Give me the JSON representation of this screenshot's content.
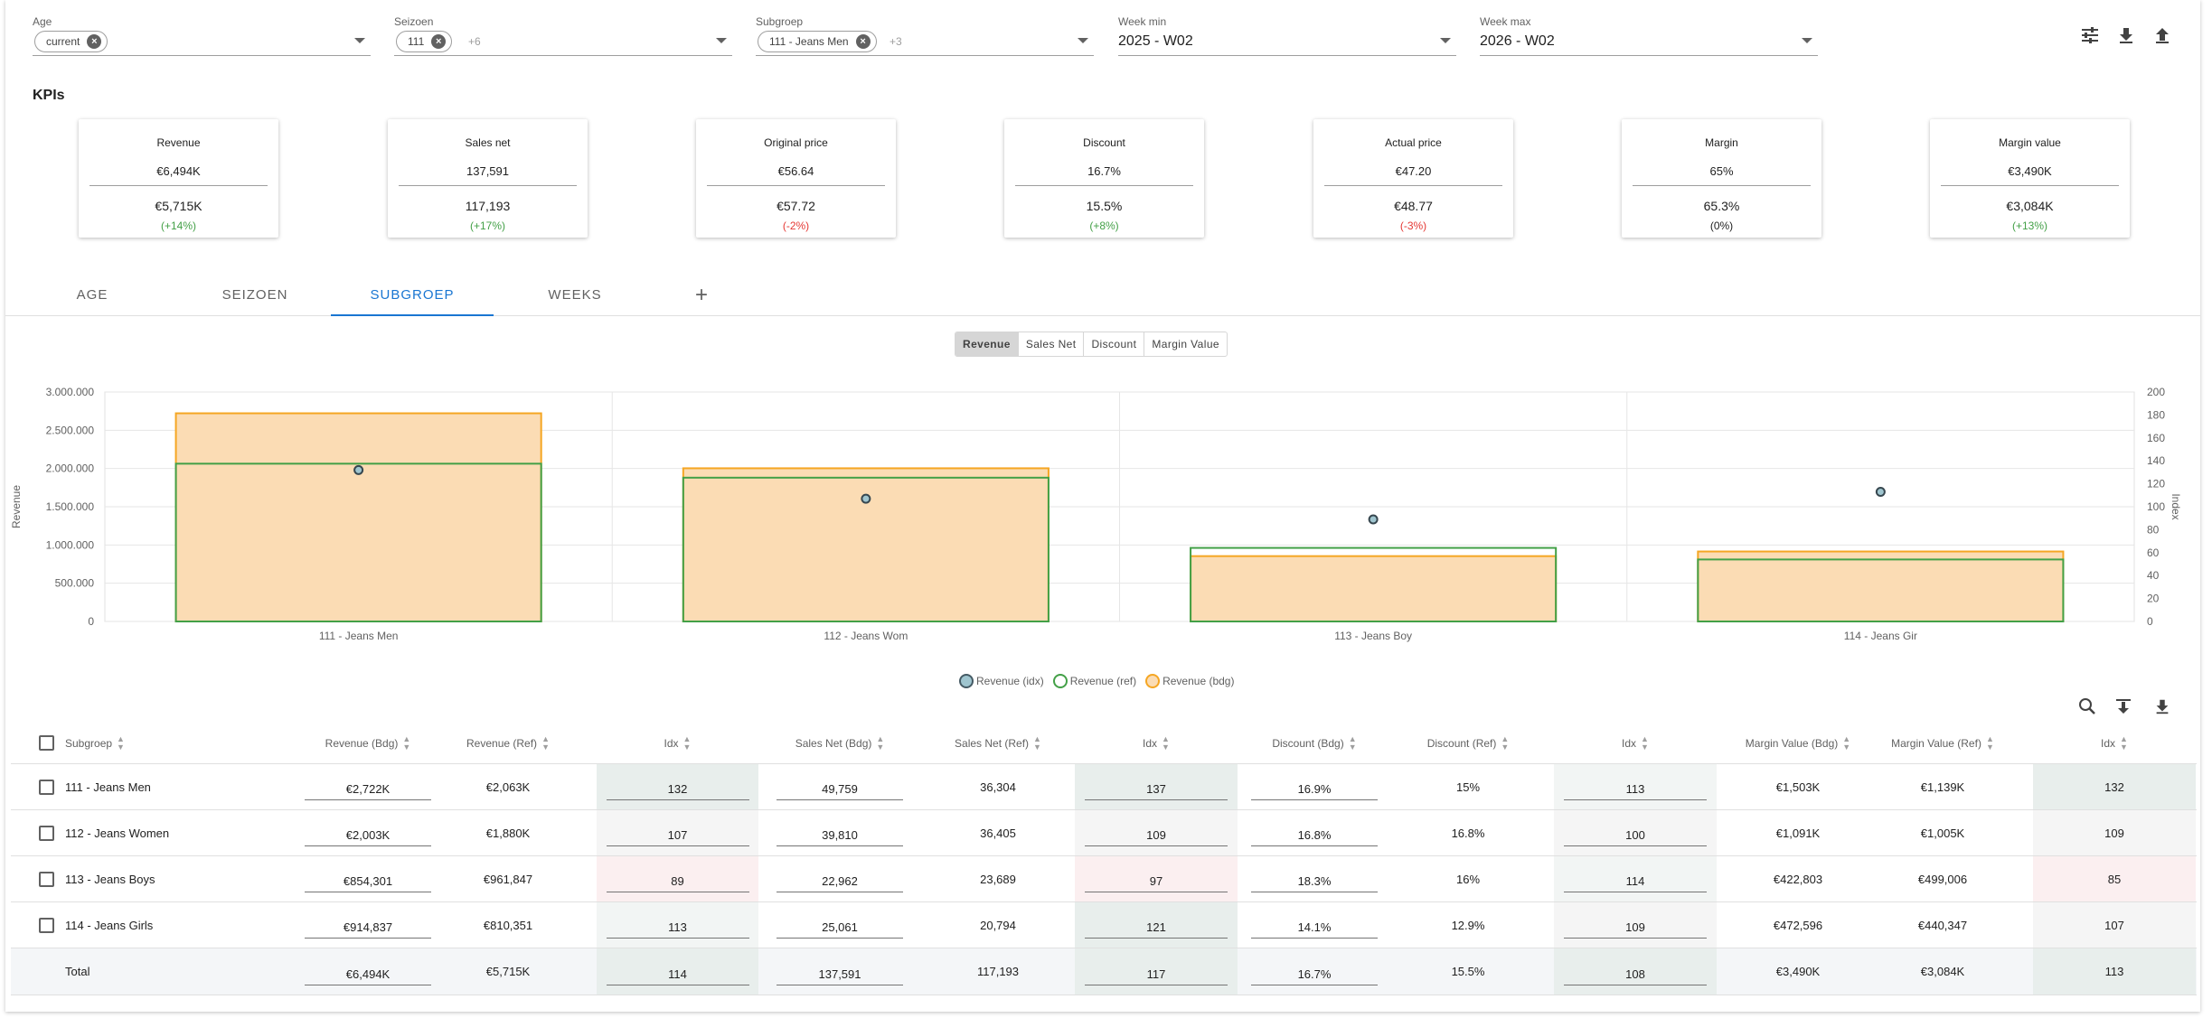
{
  "filters": [
    {
      "label": "Age",
      "chip": "current",
      "more": ""
    },
    {
      "label": "Seizoen",
      "chip": "111",
      "more": "+6"
    },
    {
      "label": "Subgroep",
      "chip": "111 - Jeans Men",
      "more": "+3"
    },
    {
      "label": "Week min",
      "value": "2025 - W02"
    },
    {
      "label": "Week max",
      "value": "2026 - W02"
    }
  ],
  "toolbar_icons": [
    "tune-icon",
    "download-icon",
    "upload-icon"
  ],
  "kpis_title": "KPIs",
  "kpis": [
    {
      "name": "Revenue",
      "bdg": "€6,494K",
      "ref": "€5,715K",
      "change": "(+14%)",
      "trend": "pos"
    },
    {
      "name": "Sales net",
      "bdg": "137,591",
      "ref": "117,193",
      "change": "(+17%)",
      "trend": "pos"
    },
    {
      "name": "Original price",
      "bdg": "€56.64",
      "ref": "€57.72",
      "change": "(-2%)",
      "trend": "neg"
    },
    {
      "name": "Discount",
      "bdg": "16.7%",
      "ref": "15.5%",
      "change": "(+8%)",
      "trend": "pos"
    },
    {
      "name": "Actual price",
      "bdg": "€47.20",
      "ref": "€48.77",
      "change": "(-3%)",
      "trend": "neg"
    },
    {
      "name": "Margin",
      "bdg": "65%",
      "ref": "65.3%",
      "change": "(0%)",
      "trend": "neu"
    },
    {
      "name": "Margin value",
      "bdg": "€3,490K",
      "ref": "€3,084K",
      "change": "(+13%)",
      "trend": "pos"
    }
  ],
  "tabs": [
    "AGE",
    "SEIZOEN",
    "SUBGROEP",
    "WEEKS"
  ],
  "active_tab": "SUBGROEP",
  "add_tab": "+",
  "metric_toggle": [
    "Revenue",
    "Sales Net",
    "Discount",
    "Margin Value"
  ],
  "active_metric": "Revenue",
  "chart_data": {
    "type": "bar",
    "categories": [
      "111 - Jeans Men",
      "112 - Jeans Wom",
      "113 - Jeans Boy",
      "114 - Jeans Gir"
    ],
    "ylabel": "Revenue",
    "y2label": "Index",
    "ylim": [
      0,
      3000000
    ],
    "y2lim": [
      0,
      200
    ],
    "yticks": [
      "3.000.000",
      "2.500.000",
      "2.000.000",
      "1.500.000",
      "1.000.000",
      "500.000",
      "0"
    ],
    "y2ticks": [
      "200",
      "180",
      "160",
      "140",
      "120",
      "100",
      "80",
      "60",
      "40",
      "20",
      "0"
    ],
    "series": [
      {
        "name": "Revenue (idx)",
        "type": "scatter",
        "axis": "y2",
        "values": [
          132,
          107,
          89,
          113
        ],
        "color": "#9fc5cf"
      },
      {
        "name": "Revenue (ref)",
        "type": "bar-outline",
        "values": [
          2063000,
          1880000,
          961847,
          810351
        ],
        "color": "#43a047"
      },
      {
        "name": "Revenue (bdg)",
        "type": "bar",
        "values": [
          2722000,
          2003000,
          854301,
          914837
        ],
        "color": "#f5a623"
      }
    ],
    "grid": true,
    "legend": "bottom-center"
  },
  "table_tools": [
    "search-icon",
    "filter-collapse-icon",
    "download-icon"
  ],
  "table": {
    "headers": [
      "Subgroep",
      "Revenue (Bdg)",
      "Revenue (Ref)",
      "Idx",
      "Sales Net (Bdg)",
      "Sales Net (Ref)",
      "Idx",
      "Discount (Bdg)",
      "Discount (Ref)",
      "Idx",
      "Margin Value (Bdg)",
      "Margin Value (Ref)",
      "Idx"
    ],
    "rows": [
      [
        "111 - Jeans Men",
        "€2,722K",
        "€2,063K",
        "132",
        "49,759",
        "36,304",
        "137",
        "16.9%",
        "15%",
        "113",
        "€1,503K",
        "€1,139K",
        "132"
      ],
      [
        "112 - Jeans Women",
        "€2,003K",
        "€1,880K",
        "107",
        "39,810",
        "36,405",
        "109",
        "16.8%",
        "16.8%",
        "100",
        "€1,091K",
        "€1,005K",
        "109"
      ],
      [
        "113 - Jeans Boys",
        "€854,301",
        "€961,847",
        "89",
        "22,962",
        "23,689",
        "97",
        "18.3%",
        "16%",
        "114",
        "€422,803",
        "€499,006",
        "85"
      ],
      [
        "114 - Jeans Girls",
        "€914,837",
        "€810,351",
        "113",
        "25,061",
        "20,794",
        "121",
        "14.1%",
        "12.9%",
        "109",
        "€472,596",
        "€440,347",
        "107"
      ]
    ],
    "total": [
      "Total",
      "€6,494K",
      "€5,715K",
      "114",
      "137,591",
      "117,193",
      "117",
      "16.7%",
      "15.5%",
      "108",
      "€3,490K",
      "€3,084K",
      "113"
    ],
    "colors": {
      "idx_high": "#e8eeec",
      "idx_mid": "#f2f5f4",
      "idx_low": "#fbeff0",
      "idx_neutral": "#f5f5f5",
      "total_bg": "#f4f6f8"
    }
  }
}
